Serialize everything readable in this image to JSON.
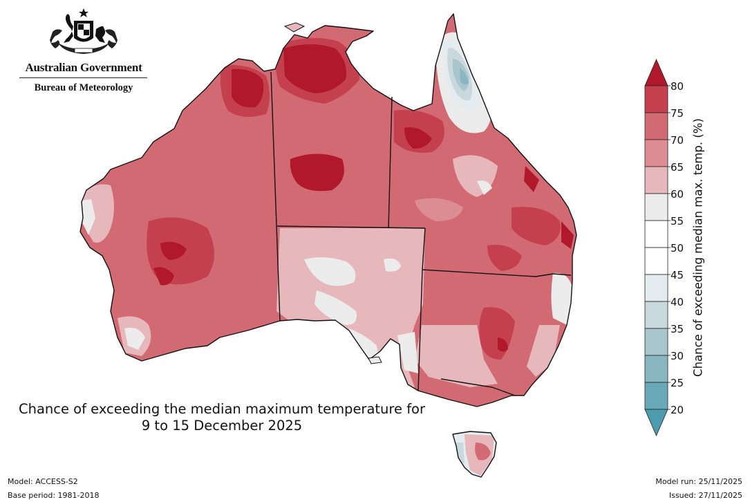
{
  "branding": {
    "government_name": "Australian Government",
    "agency_name": "Bureau of Meteorology",
    "logo_icon": "coat-of-arms-icon"
  },
  "map": {
    "title_line1": "Chance of exceeding the median maximum temperature for",
    "title_line2": "9 to 15 December 2025",
    "region_labels": [],
    "dominant_probability_band": "75-80"
  },
  "colorbar": {
    "label": "Chance of exceeding median max. temp. (%)",
    "ticks": [
      "80",
      "75",
      "70",
      "65",
      "60",
      "55",
      "50",
      "45",
      "40",
      "35",
      "30",
      "25",
      "20"
    ],
    "bands": [
      {
        "range": "80+",
        "color": "#b2182b"
      },
      {
        "range": "75-80",
        "color": "#c4404f"
      },
      {
        "range": "70-75",
        "color": "#d26a74"
      },
      {
        "range": "65-70",
        "color": "#dc8d93"
      },
      {
        "range": "60-65",
        "color": "#e6b8bc"
      },
      {
        "range": "55-60",
        "color": "#ececec"
      },
      {
        "range": "50-55",
        "color": "#ffffff"
      },
      {
        "range": "45-50",
        "color": "#ffffff"
      },
      {
        "range": "40-45",
        "color": "#e5ecef"
      },
      {
        "range": "35-40",
        "color": "#c9d8dd"
      },
      {
        "range": "30-35",
        "color": "#a9c6cd"
      },
      {
        "range": "25-30",
        "color": "#8ab6c2"
      },
      {
        "range": "20-25",
        "color": "#6aa9b7"
      },
      {
        "range": "<20",
        "color": "#4b9cae"
      }
    ]
  },
  "footer": {
    "model": "Model: ACCESS-S2",
    "base_period": "Base period: 1981-2018",
    "model_run": "Model run: 25/11/2025",
    "issued": "Issued: 27/11/2025"
  }
}
